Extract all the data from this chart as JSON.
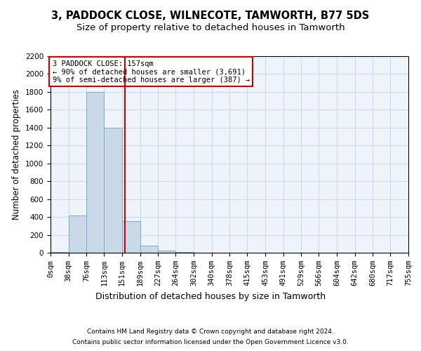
{
  "title_line1": "3, PADDOCK CLOSE, WILNECOTE, TAMWORTH, B77 5DS",
  "title_line2": "Size of property relative to detached houses in Tamworth",
  "xlabel": "Distribution of detached houses by size in Tamworth",
  "ylabel": "Number of detached properties",
  "bar_color": "#c9d9e8",
  "bar_edgecolor": "#7aaac8",
  "vline_x": 157,
  "vline_color": "#cc0000",
  "annotation_text": "3 PADDOCK CLOSE: 157sqm\n← 90% of detached houses are smaller (3,691)\n9% of semi-detached houses are larger (387) →",
  "annotation_box_color": "#cc0000",
  "bins": [
    0,
    38,
    76,
    113,
    151,
    189,
    227,
    264,
    302,
    340,
    378,
    415,
    453,
    491,
    529,
    566,
    604,
    642,
    680,
    717,
    755
  ],
  "bar_heights": [
    10,
    420,
    1800,
    1400,
    350,
    80,
    25,
    5,
    0,
    0,
    0,
    0,
    0,
    0,
    0,
    0,
    0,
    0,
    0,
    0
  ],
  "ylim": [
    0,
    2200
  ],
  "yticks": [
    0,
    200,
    400,
    600,
    800,
    1000,
    1200,
    1400,
    1600,
    1800,
    2000,
    2200
  ],
  "grid_color": "#c8d8e8",
  "background_color": "#eef4f9",
  "footnote_line1": "Contains HM Land Registry data © Crown copyright and database right 2024.",
  "footnote_line2": "Contains public sector information licensed under the Open Government Licence v3.0.",
  "title_fontsize": 10.5,
  "subtitle_fontsize": 9.5,
  "axis_label_fontsize": 8.5,
  "tick_fontsize": 7.5,
  "footnote_fontsize": 6.5
}
